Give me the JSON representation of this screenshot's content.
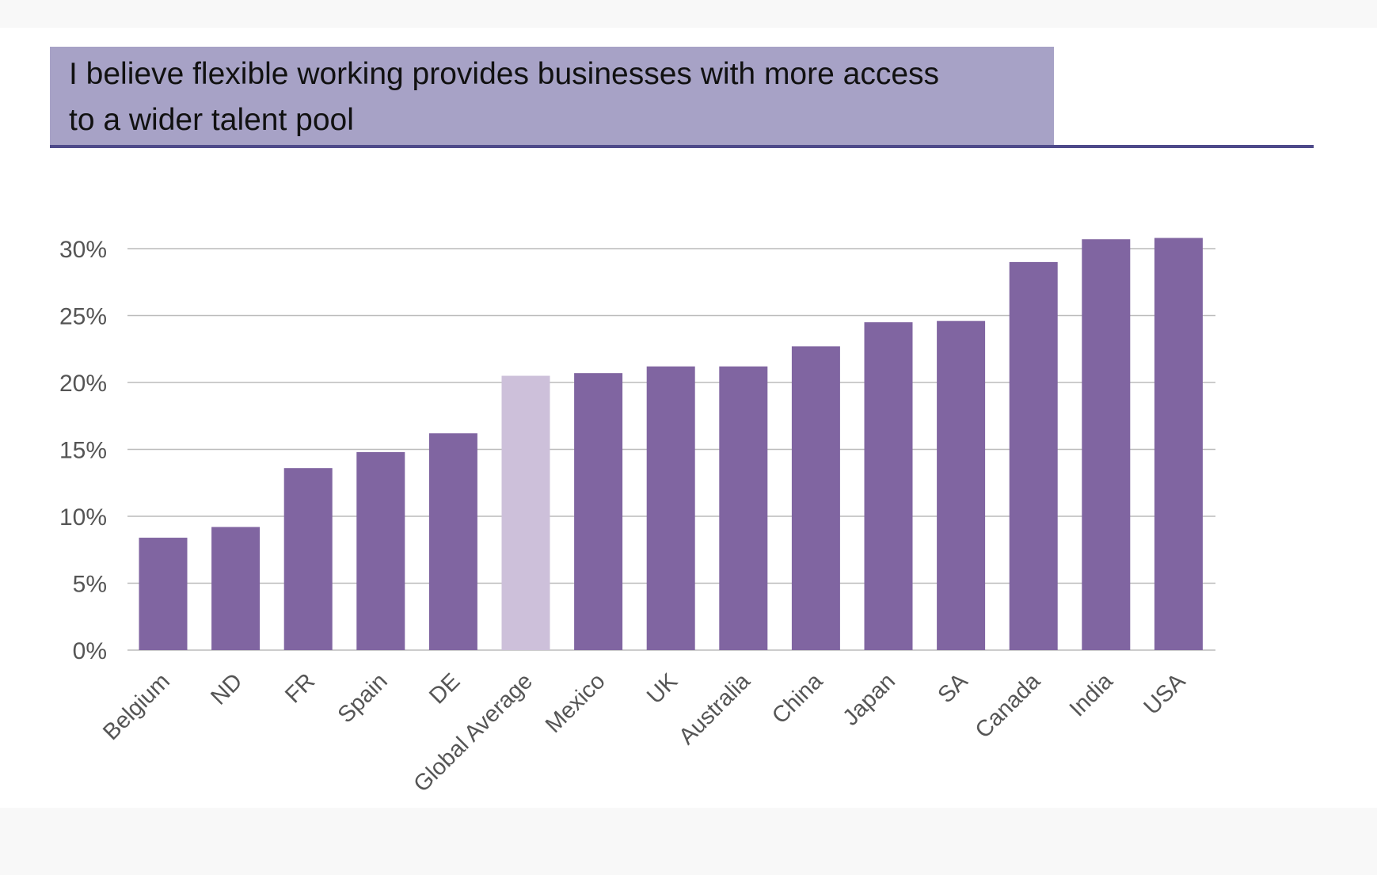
{
  "chart_data": {
    "type": "bar",
    "title": "I believe flexible working provides businesses with more access to a wider talent pool",
    "title_lines": [
      "I believe flexible working provides businesses with more access",
      "to a wider talent pool"
    ],
    "categories": [
      "Belgium",
      "ND",
      "FR",
      "Spain",
      "DE",
      "Global Average",
      "Mexico",
      "UK",
      "Australia",
      "China",
      "Japan",
      "SA",
      "Canada",
      "India",
      "USA"
    ],
    "values": [
      8.4,
      9.2,
      13.6,
      14.8,
      16.2,
      20.5,
      20.7,
      21.2,
      21.2,
      22.7,
      24.5,
      24.6,
      29.0,
      30.7,
      30.8
    ],
    "highlight": "Global Average",
    "xlabel": "",
    "ylabel": "",
    "ylim": [
      0,
      30
    ],
    "yticks": [
      "0%",
      "5%",
      "10%",
      "15%",
      "20%",
      "25%",
      "30%"
    ],
    "grid": true,
    "colors": {
      "bar": "#8065a1",
      "highlight": "#cdc0da",
      "title_bg": "#a7a2c6",
      "rule": "#4e4a8a",
      "grid": "#bbbbbb"
    }
  }
}
